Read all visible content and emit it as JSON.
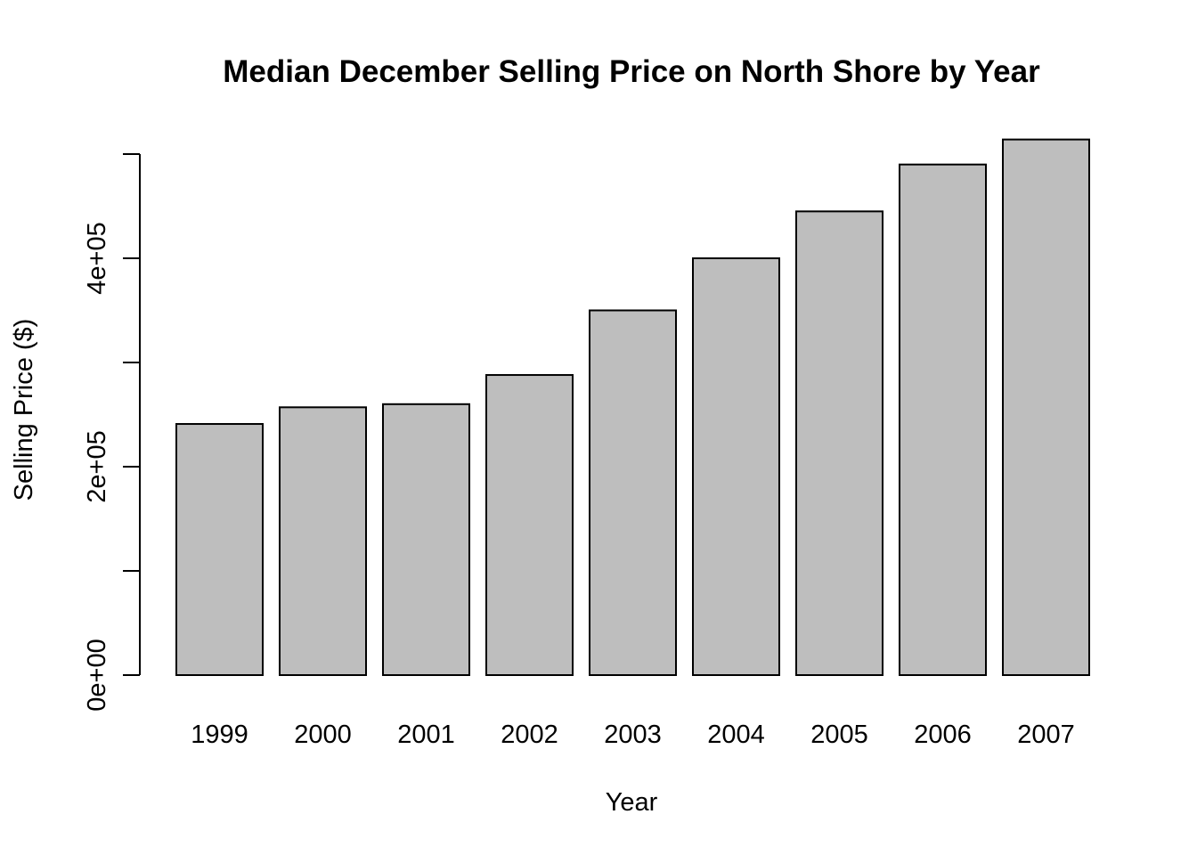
{
  "chart_data": {
    "type": "bar",
    "title": "Median December Selling Price on North Shore by Year",
    "xlabel": "Year",
    "ylabel": "Selling Price ($)",
    "categories": [
      "1999",
      "2000",
      "2001",
      "2002",
      "2003",
      "2004",
      "2005",
      "2006",
      "2007"
    ],
    "values": [
      241000,
      257000,
      260000,
      288000,
      350000,
      400000,
      445000,
      490000,
      514000
    ],
    "ylim": [
      0,
      500000
    ],
    "y_ticks": [
      0,
      100000,
      200000,
      300000,
      400000,
      500000
    ],
    "y_tick_labels": [
      "0e+00",
      "",
      "2e+05",
      "",
      "4e+05",
      ""
    ],
    "bar_color": "#bebebe",
    "grid": false,
    "legend": "none"
  }
}
